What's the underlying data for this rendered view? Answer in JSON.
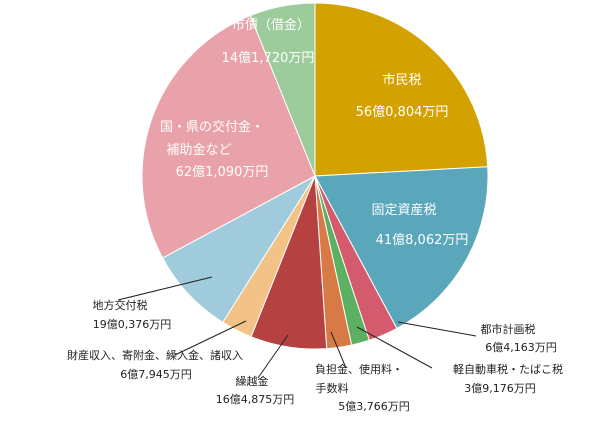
{
  "chart_data": {
    "type": "pie",
    "title": "",
    "start_angle_deg": 0,
    "direction": "clockwise",
    "slices": [
      {
        "label": "市民税",
        "value_text": "56億0,804万円",
        "value": 560804,
        "color": "#d4a200"
      },
      {
        "label": "固定資産税",
        "value_text": "41億8,062万円",
        "value": 418062,
        "color": "#5aa6bb"
      },
      {
        "label": "都市計画税",
        "value_text": "6億4,163万円",
        "value": 64163,
        "color": "#d45a6e"
      },
      {
        "label": "軽自動車税・たばこ税",
        "value_text": "3億9,176万円",
        "value": 39176,
        "color": "#5cb062"
      },
      {
        "label": "負担金、使用料・手数料",
        "value_text": "5億3,766万円",
        "value": 53766,
        "color": "#d87a45"
      },
      {
        "label": "繰越金",
        "value_text": "16億4,875万円",
        "value": 164875,
        "color": "#b54141"
      },
      {
        "label": "財産収入、寄附金、繰入金、諸収入",
        "value_text": "6億7,945万円",
        "value": 67945,
        "color": "#f2c287"
      },
      {
        "label": "地方交付税",
        "value_text": "19億0,376万円",
        "value": 190376,
        "color": "#9fcbdc"
      },
      {
        "label": "国・県の交付金・補助金など",
        "value_text": "62億1,090万円",
        "value": 621090,
        "color": "#e9a2a9"
      },
      {
        "label": "市債（借金）",
        "value_text": "14億1,720万円",
        "value": 141720,
        "color": "#9ccb9c"
      }
    ]
  }
}
